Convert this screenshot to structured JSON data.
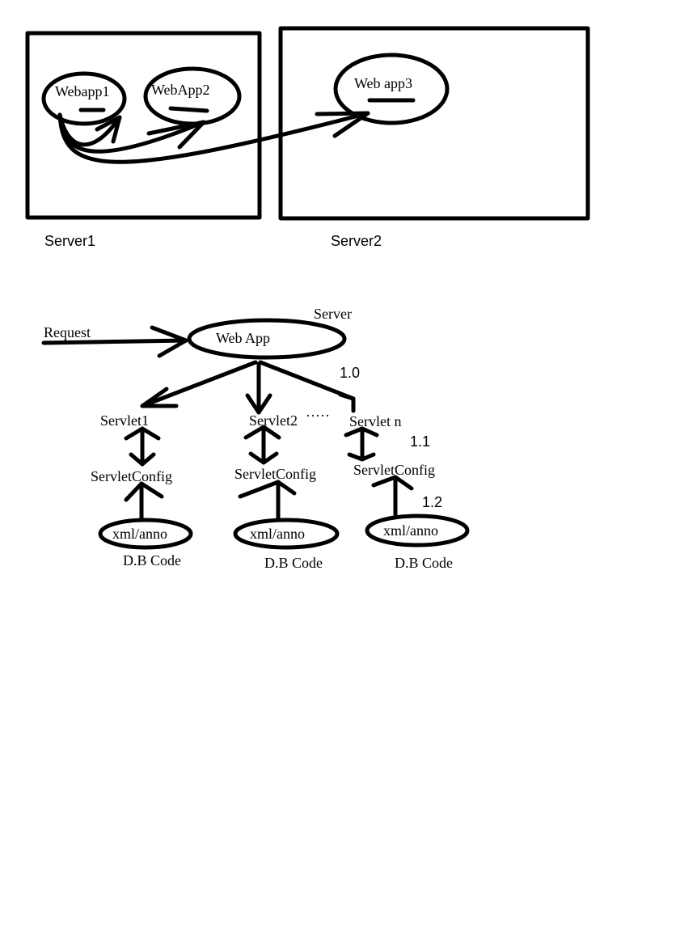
{
  "top_diagram": {
    "server1": {
      "label": "Server1",
      "apps": [
        "Webapp1",
        "WebApp2"
      ]
    },
    "server2": {
      "label": "Server2",
      "apps": [
        "Web app3"
      ]
    }
  },
  "bottom_diagram": {
    "server_label": "Server",
    "request_label": "Request",
    "webapp_label": "Web App",
    "annotations": {
      "v1_0": "1.0",
      "v1_1": "1.1",
      "v1_2": "1.2"
    },
    "columns": [
      {
        "servlet": "Servlet1",
        "config": "ServletConfig",
        "source": "xml/anno",
        "code": "D.B Code"
      },
      {
        "servlet": "Servlet2",
        "config": "ServletConfig",
        "source": "xml/anno",
        "code": "D.B Code"
      },
      {
        "servlet": "Servlet n",
        "config": "ServletConfig",
        "source": "xml/anno",
        "code": "D.B Code"
      }
    ],
    "ellipsis": "·····"
  }
}
